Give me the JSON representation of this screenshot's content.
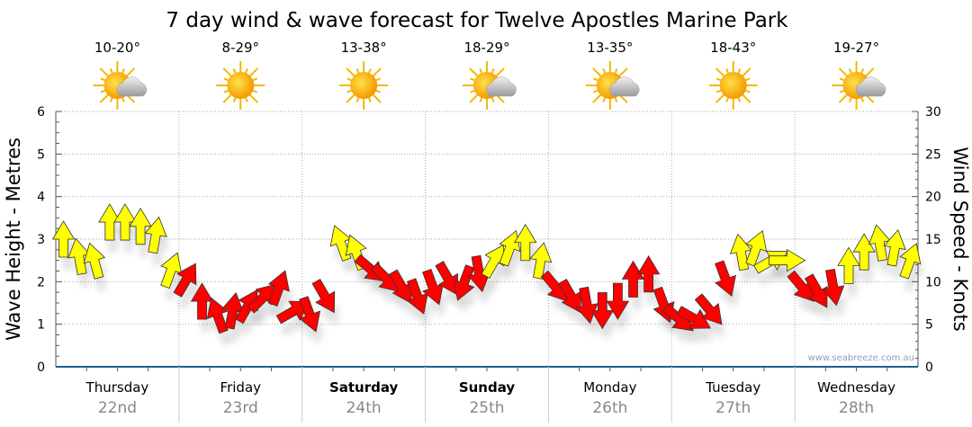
{
  "chart_data": {
    "type": "scatter",
    "title": "7 day wind & wave forecast for Twelve Apostles Marine Park",
    "ylabel_left": "Wave Height - Metres",
    "ylabel_right": "Wind Speed - Knots",
    "ylim_left": [
      0,
      6
    ],
    "ylim_right": [
      0,
      30
    ],
    "yticks_left": [
      "0",
      "1",
      "2",
      "3",
      "4",
      "5",
      "6"
    ],
    "yticks_right": [
      "0",
      "5",
      "10",
      "15",
      "20",
      "25",
      "30"
    ],
    "grid": true,
    "watermark": "www.seabreeze.com.au",
    "days": [
      {
        "name": "Thursday",
        "date": "22nd",
        "bold": false,
        "temp": "10-20°",
        "icon": "sun-cloud-icon"
      },
      {
        "name": "Friday",
        "date": "23rd",
        "bold": false,
        "temp": "8-29°",
        "icon": "sun-icon"
      },
      {
        "name": "Saturday",
        "date": "24th",
        "bold": true,
        "temp": "13-38°",
        "icon": "sun-icon"
      },
      {
        "name": "Sunday",
        "date": "25th",
        "bold": true,
        "temp": "18-29°",
        "icon": "sun-cloud-icon"
      },
      {
        "name": "Monday",
        "date": "26th",
        "bold": false,
        "temp": "13-35°",
        "icon": "sun-cloud-icon"
      },
      {
        "name": "Tuesday",
        "date": "27th",
        "bold": false,
        "temp": "18-43°",
        "icon": "sun-icon"
      },
      {
        "name": "Wednesday",
        "date": "28th",
        "bold": false,
        "temp": "19-27°",
        "icon": "sun-cloud-icon"
      }
    ],
    "colors": {
      "onshore": "#ffff00",
      "offshore": "#ff0000",
      "axis": "#1f5f8f",
      "dayname": "#000000",
      "date": "#888888"
    },
    "wind_knots": [
      15,
      13,
      12.5,
      17,
      17,
      16.5,
      15.5,
      11.4,
      10.3,
      7.7,
      6.1,
      6.6,
      7.2,
      8.2,
      9.3,
      6.6,
      6.1,
      8.2,
      14.6,
      13.5,
      11.4,
      10.3,
      9.3,
      8.2,
      9.3,
      10.3,
      9.8,
      10.9,
      12.5,
      14,
      14.6,
      12.5,
      9.3,
      8.2,
      7.2,
      6.6,
      7.7,
      10.3,
      10.9,
      7.2,
      5.6,
      5.6,
      6.6,
      10.3,
      13.5,
      14,
      12.5,
      12.5,
      9.3,
      8.8,
      9.3,
      11.9,
      13.5,
      14.6,
      14,
      12.5
    ],
    "wind_direction_deg": [
      0,
      -10,
      -15,
      0,
      0,
      0,
      10,
      20,
      30,
      0,
      -20,
      10,
      30,
      45,
      20,
      60,
      160,
      150,
      -20,
      -20,
      130,
      135,
      150,
      160,
      160,
      150,
      200,
      170,
      30,
      20,
      0,
      10,
      140,
      150,
      170,
      180,
      180,
      0,
      0,
      160,
      130,
      120,
      140,
      160,
      -10,
      20,
      60,
      90,
      140,
      150,
      170,
      0,
      0,
      -10,
      10,
      20
    ],
    "arrow_color": [
      "Y",
      "Y",
      "Y",
      "Y",
      "Y",
      "Y",
      "Y",
      "Y",
      "R",
      "R",
      "R",
      "R",
      "R",
      "R",
      "R",
      "R",
      "R",
      "R",
      "Y",
      "Y",
      "R",
      "R",
      "R",
      "R",
      "R",
      "R",
      "R",
      "R",
      "Y",
      "Y",
      "Y",
      "Y",
      "R",
      "R",
      "R",
      "R",
      "R",
      "R",
      "R",
      "R",
      "R",
      "R",
      "R",
      "R",
      "Y",
      "Y",
      "Y",
      "Y",
      "R",
      "R",
      "R",
      "Y",
      "Y",
      "Y",
      "Y",
      "Y"
    ]
  }
}
